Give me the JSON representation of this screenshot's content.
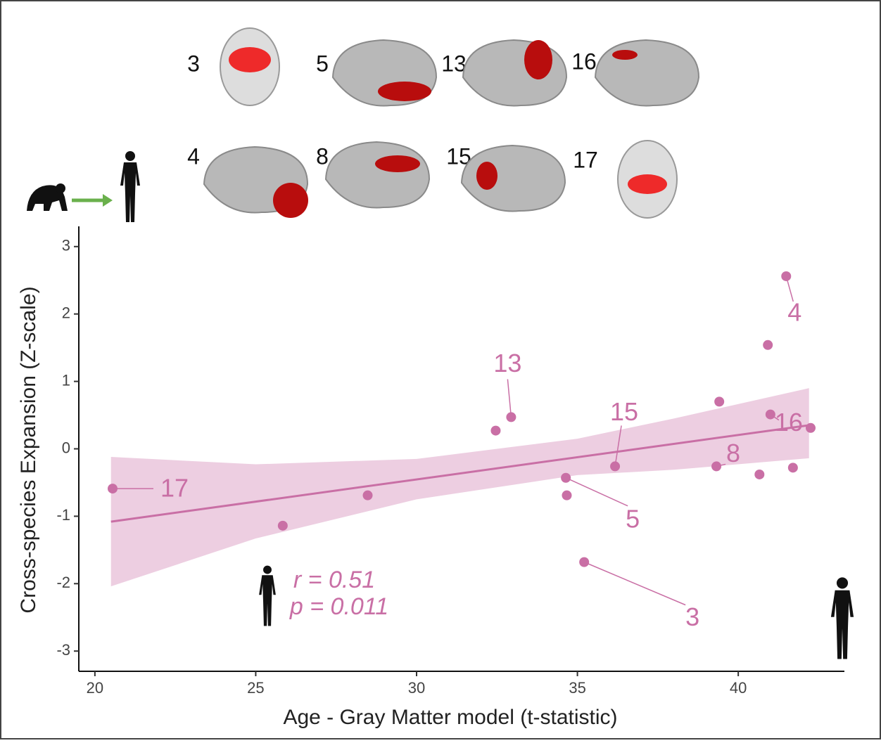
{
  "chart_data": {
    "type": "scatter",
    "x_label": "Age - Gray Matter model (t-statistic)",
    "y_label": "Cross-species Expansion (Z-scale)",
    "xlim": [
      19.5,
      43.3
    ],
    "ylim": [
      -3.3,
      3.3
    ],
    "xticks": [
      20,
      25,
      30,
      35,
      40
    ],
    "yticks": [
      -3,
      -2,
      -1,
      0,
      1,
      2,
      3
    ],
    "color": "#c96fa5",
    "x": [
      20.55,
      25.84,
      28.48,
      32.46,
      32.94,
      34.64,
      34.67,
      35.21,
      36.17,
      39.32,
      39.41,
      40.66,
      40.92,
      41.0,
      41.49,
      41.7,
      42.25
    ],
    "values": [
      -0.59,
      -1.14,
      -0.69,
      0.27,
      0.47,
      -0.43,
      -0.69,
      -1.68,
      -0.26,
      -0.26,
      0.7,
      -0.38,
      1.54,
      0.51,
      2.56,
      -0.28,
      0.31
    ],
    "point_labels": [
      "17",
      null,
      null,
      null,
      "13",
      "5",
      null,
      "3",
      "15",
      "8",
      null,
      null,
      null,
      "16",
      "4",
      null,
      null
    ],
    "fit": {
      "x": [
        20.5,
        42.2
      ],
      "values": [
        -1.08,
        0.35
      ]
    },
    "band": {
      "x": [
        20.5,
        25,
        30,
        35,
        38,
        42.2
      ],
      "upper": [
        -0.12,
        -0.23,
        -0.15,
        0.15,
        0.45,
        0.9
      ],
      "lower": [
        -2.04,
        -1.33,
        -0.75,
        -0.39,
        -0.31,
        -0.14
      ]
    },
    "annotations": [
      "r = 0.51",
      "p = 0.011"
    ],
    "panels": [
      "3",
      "5",
      "13",
      "16",
      "4",
      "8",
      "15",
      "17"
    ]
  }
}
